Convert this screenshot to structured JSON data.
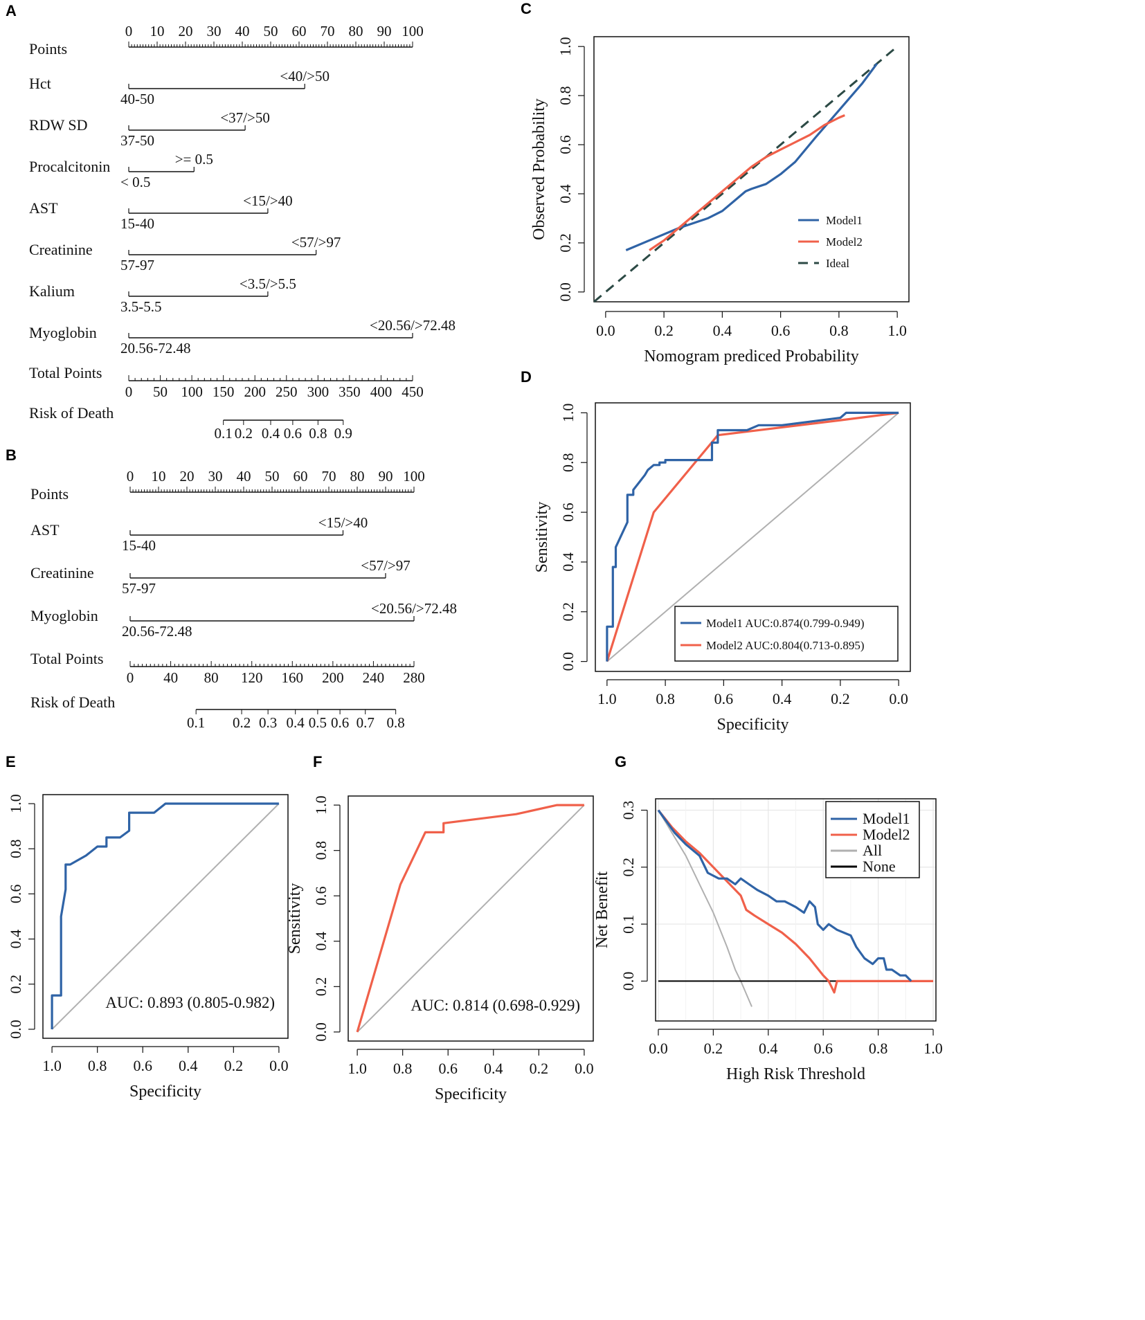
{
  "panel_labels": {
    "A": "A",
    "B": "B",
    "C": "C",
    "D": "D",
    "E": "E",
    "F": "F",
    "G": "G"
  },
  "colors": {
    "model1": "#2f63a6",
    "model2": "#f0604a",
    "ideal": "#2c4a45",
    "reference": "#b0b0b0",
    "none": "#000000",
    "grid": "#e6e6e6"
  },
  "chart_data": [
    {
      "panel": "A",
      "type": "nomogram",
      "points_label": "Points",
      "points_ticks": [
        "0",
        "10",
        "20",
        "30",
        "40",
        "50",
        "60",
        "70",
        "80",
        "90",
        "100"
      ],
      "variables": [
        {
          "name": "Hct",
          "left_label": "40-50",
          "right_label": "<40/>50",
          "max_points": 62
        },
        {
          "name": "RDW SD",
          "left_label": "37-50",
          "right_label": "<37/>50",
          "max_points": 41
        },
        {
          "name": "Procalcitonin",
          "left_label": "< 0.5",
          "right_label": ">= 0.5",
          "max_points": 23
        },
        {
          "name": "AST",
          "left_label": "15-40",
          "right_label": "<15/>40",
          "max_points": 49
        },
        {
          "name": "Creatinine",
          "left_label": "57-97",
          "right_label": "<57/>97",
          "max_points": 66
        },
        {
          "name": "Kalium",
          "left_label": "3.5-5.5",
          "right_label": "<3.5/>5.5",
          "max_points": 49
        },
        {
          "name": "Myoglobin",
          "left_label": "20.56-72.48",
          "right_label": "<20.56/>72.48",
          "max_points": 100
        }
      ],
      "total_label": "Total Points",
      "total_max": 450,
      "total_ticks": [
        "0",
        "50",
        "100",
        "150",
        "200",
        "250",
        "300",
        "350",
        "400",
        "450"
      ],
      "risk_label": "Risk of Death",
      "risk_ticks": [
        {
          "label": "0.1",
          "total": 150
        },
        {
          "label": "0.2",
          "total": 182
        },
        {
          "label": "0.4",
          "total": 225
        },
        {
          "label": "0.6",
          "total": 260
        },
        {
          "label": "0.8",
          "total": 300
        },
        {
          "label": "0.9",
          "total": 340
        }
      ]
    },
    {
      "panel": "B",
      "type": "nomogram",
      "points_label": "Points",
      "points_ticks": [
        "0",
        "10",
        "20",
        "30",
        "40",
        "50",
        "60",
        "70",
        "80",
        "90",
        "100"
      ],
      "variables": [
        {
          "name": "AST",
          "left_label": "15-40",
          "right_label": "<15/>40",
          "max_points": 75
        },
        {
          "name": "Creatinine",
          "left_label": "57-97",
          "right_label": "<57/>97",
          "max_points": 90
        },
        {
          "name": "Myoglobin",
          "left_label": "20.56-72.48",
          "right_label": "<20.56/>72.48",
          "max_points": 100
        }
      ],
      "total_label": "Total Points",
      "total_max": 280,
      "total_ticks": [
        "0",
        "40",
        "80",
        "120",
        "160",
        "200",
        "240",
        "280"
      ],
      "risk_label": "Risk of Death",
      "risk_ticks": [
        {
          "label": "0.1",
          "total": 65
        },
        {
          "label": "0.2",
          "total": 110
        },
        {
          "label": "0.3",
          "total": 136
        },
        {
          "label": "0.4",
          "total": 163
        },
        {
          "label": "0.5",
          "total": 185
        },
        {
          "label": "0.6",
          "total": 207
        },
        {
          "label": "0.7",
          "total": 232
        },
        {
          "label": "0.8",
          "total": 262
        }
      ]
    },
    {
      "panel": "C",
      "type": "line",
      "title": "",
      "xlabel": "Nomogram prediced Probability",
      "ylabel": "Observed Probability",
      "xlim": [
        -0.04,
        1.04
      ],
      "ylim": [
        -0.04,
        1.04
      ],
      "xticks": [
        "0.0",
        "0.2",
        "0.4",
        "0.6",
        "0.8",
        "1.0"
      ],
      "yticks": [
        "0.0",
        "0.2",
        "0.4",
        "0.6",
        "0.8",
        "1.0"
      ],
      "legend": {
        "position": "bottom-right"
      },
      "series": [
        {
          "name": "Model1",
          "x": [
            0.07,
            0.15,
            0.25,
            0.35,
            0.4,
            0.45,
            0.48,
            0.5,
            0.55,
            0.6,
            0.65,
            0.72,
            0.8,
            0.88,
            0.93
          ],
          "y": [
            0.17,
            0.21,
            0.26,
            0.3,
            0.33,
            0.38,
            0.41,
            0.42,
            0.44,
            0.48,
            0.53,
            0.63,
            0.74,
            0.85,
            0.93
          ]
        },
        {
          "name": "Model2",
          "x": [
            0.15,
            0.2,
            0.25,
            0.3,
            0.35,
            0.4,
            0.45,
            0.5,
            0.55,
            0.6,
            0.65,
            0.7,
            0.75,
            0.8,
            0.82
          ],
          "y": [
            0.17,
            0.21,
            0.26,
            0.31,
            0.36,
            0.41,
            0.46,
            0.51,
            0.55,
            0.58,
            0.61,
            0.64,
            0.68,
            0.71,
            0.72
          ]
        },
        {
          "name": "Ideal",
          "x": [
            -0.04,
            1.0
          ],
          "y": [
            -0.04,
            1.0
          ]
        }
      ]
    },
    {
      "panel": "D",
      "type": "line",
      "xlabel": "Specificity",
      "ylabel": "Sensitivity",
      "xlim": [
        1.04,
        -0.04
      ],
      "ylim": [
        -0.04,
        1.04
      ],
      "xticks": [
        "1.0",
        "0.8",
        "0.6",
        "0.4",
        "0.2",
        "0.0"
      ],
      "yticks": [
        "0.0",
        "0.2",
        "0.4",
        "0.6",
        "0.8",
        "1.0"
      ],
      "legend": {
        "position": "bottom-right"
      },
      "series": [
        {
          "name": "Model1",
          "legend": "Model1 AUC:0.874(0.799-0.949)",
          "x": [
            1.0,
            1.0,
            0.98,
            0.98,
            0.97,
            0.97,
            0.93,
            0.93,
            0.91,
            0.91,
            0.89,
            0.87,
            0.86,
            0.84,
            0.82,
            0.82,
            0.8,
            0.8,
            0.64,
            0.64,
            0.62,
            0.62,
            0.52,
            0.48,
            0.4,
            0.2,
            0.2,
            0.18,
            0.16,
            0.0
          ],
          "y": [
            0.0,
            0.14,
            0.14,
            0.38,
            0.38,
            0.46,
            0.56,
            0.67,
            0.67,
            0.69,
            0.72,
            0.75,
            0.77,
            0.79,
            0.79,
            0.8,
            0.8,
            0.81,
            0.81,
            0.88,
            0.88,
            0.93,
            0.93,
            0.95,
            0.95,
            0.98,
            0.98,
            1.0,
            1.0,
            1.0
          ]
        },
        {
          "name": "Model2",
          "legend": "Model2 AUC:0.804(0.713-0.895)",
          "x": [
            1.0,
            0.84,
            0.62,
            0.2,
            0.0
          ],
          "y": [
            0.0,
            0.6,
            0.91,
            0.97,
            1.0
          ]
        },
        {
          "name": "Reference",
          "x": [
            1.0,
            0.0
          ],
          "y": [
            0.0,
            1.0
          ]
        }
      ]
    },
    {
      "panel": "E",
      "type": "line",
      "xlabel": "Specificity",
      "ylabel": "Sensitivity",
      "xlim": [
        1.04,
        -0.04
      ],
      "ylim": [
        -0.04,
        1.04
      ],
      "xticks": [
        "1.0",
        "0.8",
        "0.6",
        "0.4",
        "0.2",
        "0.0"
      ],
      "yticks": [
        "0.0",
        "0.2",
        "0.4",
        "0.6",
        "0.8",
        "1.0"
      ],
      "annotation": "AUC: 0.893 (0.805-0.982)",
      "series": [
        {
          "name": "ROC",
          "x": [
            1.0,
            1.0,
            0.96,
            0.96,
            0.94,
            0.94,
            0.92,
            0.85,
            0.8,
            0.76,
            0.76,
            0.7,
            0.66,
            0.66,
            0.55,
            0.5,
            0.5,
            0.0
          ],
          "y": [
            0.0,
            0.15,
            0.15,
            0.5,
            0.62,
            0.73,
            0.73,
            0.77,
            0.81,
            0.81,
            0.85,
            0.85,
            0.88,
            0.96,
            0.96,
            1.0,
            1.0,
            1.0
          ]
        },
        {
          "name": "Reference",
          "x": [
            1.0,
            0.0
          ],
          "y": [
            0.0,
            1.0
          ]
        }
      ]
    },
    {
      "panel": "F",
      "type": "line",
      "xlabel": "Specificity",
      "ylabel": "Sensitivity",
      "xlim": [
        1.04,
        -0.04
      ],
      "ylim": [
        -0.04,
        1.04
      ],
      "xticks": [
        "1.0",
        "0.8",
        "0.6",
        "0.4",
        "0.2",
        "0.0"
      ],
      "yticks": [
        "0.0",
        "0.2",
        "0.4",
        "0.6",
        "0.8",
        "1.0"
      ],
      "annotation": "AUC: 0.814 (0.698-0.929)",
      "series": [
        {
          "name": "ROC",
          "x": [
            1.0,
            0.81,
            0.7,
            0.62,
            0.62,
            0.3,
            0.12,
            0.0
          ],
          "y": [
            0.0,
            0.65,
            0.88,
            0.88,
            0.92,
            0.96,
            1.0,
            1.0
          ]
        },
        {
          "name": "Reference",
          "x": [
            1.0,
            0.0
          ],
          "y": [
            0.0,
            1.0
          ]
        }
      ]
    },
    {
      "panel": "G",
      "type": "line",
      "xlabel": "High Risk Threshold",
      "ylabel": "Net Benefit",
      "xlim": [
        -0.01,
        1.01
      ],
      "ylim": [
        -0.07,
        0.32
      ],
      "grid": true,
      "xticks": [
        "0.0",
        "0.2",
        "0.4",
        "0.6",
        "0.8",
        "1.0"
      ],
      "yticks": [
        "0.0",
        "0.1",
        "0.2",
        "0.3"
      ],
      "legend": {
        "position": "top-right"
      },
      "series": [
        {
          "name": "Model1",
          "x": [
            0.0,
            0.03,
            0.06,
            0.1,
            0.15,
            0.18,
            0.22,
            0.25,
            0.28,
            0.3,
            0.33,
            0.36,
            0.4,
            0.43,
            0.46,
            0.5,
            0.53,
            0.55,
            0.57,
            0.58,
            0.6,
            0.62,
            0.65,
            0.7,
            0.72,
            0.75,
            0.78,
            0.8,
            0.82,
            0.83,
            0.85,
            0.88,
            0.9,
            0.92
          ],
          "y": [
            0.3,
            0.28,
            0.26,
            0.24,
            0.22,
            0.19,
            0.18,
            0.18,
            0.17,
            0.18,
            0.17,
            0.16,
            0.15,
            0.14,
            0.14,
            0.13,
            0.12,
            0.14,
            0.13,
            0.1,
            0.09,
            0.1,
            0.09,
            0.08,
            0.06,
            0.04,
            0.03,
            0.04,
            0.04,
            0.02,
            0.02,
            0.01,
            0.01,
            0.0
          ]
        },
        {
          "name": "Model2",
          "x": [
            0.0,
            0.05,
            0.1,
            0.15,
            0.2,
            0.25,
            0.3,
            0.32,
            0.35,
            0.4,
            0.45,
            0.5,
            0.55,
            0.6,
            0.62,
            0.63,
            0.64,
            0.65,
            1.0
          ],
          "y": [
            0.3,
            0.27,
            0.245,
            0.225,
            0.2,
            0.175,
            0.15,
            0.125,
            0.115,
            0.1,
            0.085,
            0.065,
            0.04,
            0.01,
            0.0,
            -0.01,
            -0.02,
            0.0,
            0.0
          ]
        },
        {
          "name": "All",
          "x": [
            0.0,
            0.05,
            0.1,
            0.15,
            0.2,
            0.25,
            0.28,
            0.3,
            0.34
          ],
          "y": [
            0.3,
            0.26,
            0.22,
            0.17,
            0.12,
            0.06,
            0.02,
            0.0,
            -0.045
          ]
        },
        {
          "name": "None",
          "x": [
            0.0,
            1.0
          ],
          "y": [
            0.0,
            0.0
          ]
        }
      ]
    }
  ]
}
